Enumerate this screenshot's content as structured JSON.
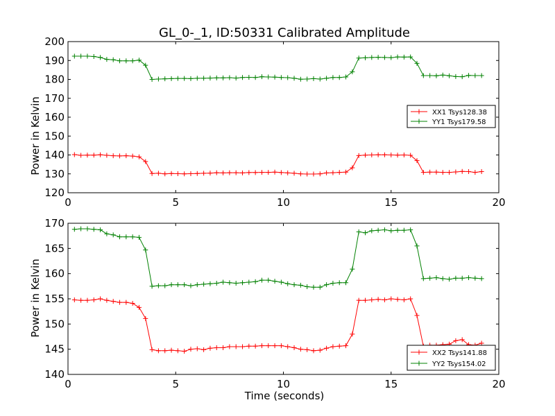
{
  "chart_data": [
    {
      "type": "line",
      "title": "GL_0-_1, ID:50331 Calibrated Amplitude",
      "xlabel": "",
      "ylabel": "Power in Kelvin",
      "xlim": [
        0,
        20
      ],
      "ylim": [
        120,
        200
      ],
      "xticks": [
        0,
        5,
        10,
        15,
        20
      ],
      "yticks": [
        120,
        130,
        140,
        150,
        160,
        170,
        180,
        190,
        200
      ],
      "grid": false,
      "legend_position": "right",
      "x": [
        0.3,
        0.6,
        0.9,
        1.2,
        1.5,
        1.8,
        2.1,
        2.4,
        2.7,
        3.0,
        3.3,
        3.6,
        3.9,
        4.2,
        4.5,
        4.8,
        5.1,
        5.4,
        5.7,
        6.0,
        6.3,
        6.6,
        6.9,
        7.2,
        7.5,
        7.8,
        8.1,
        8.4,
        8.7,
        9.0,
        9.3,
        9.6,
        9.9,
        10.2,
        10.5,
        10.8,
        11.1,
        11.4,
        11.7,
        12.0,
        12.3,
        12.6,
        12.9,
        13.2,
        13.5,
        13.8,
        14.1,
        14.4,
        14.7,
        15.0,
        15.3,
        15.6,
        15.9,
        16.2,
        16.5,
        16.8,
        17.1,
        17.4,
        17.7,
        18.0,
        18.3,
        18.6,
        18.9,
        19.2
      ],
      "series": [
        {
          "name": "XX1 Tsys128.38",
          "color": "#ff0000",
          "values": [
            140.2,
            139.8,
            139.9,
            139.9,
            140.1,
            139.8,
            139.6,
            139.5,
            139.6,
            139.4,
            139.0,
            136.5,
            130.2,
            130.3,
            130.0,
            130.2,
            130.1,
            130.0,
            130.1,
            130.2,
            130.3,
            130.4,
            130.6,
            130.5,
            130.6,
            130.6,
            130.5,
            130.7,
            130.7,
            130.8,
            130.8,
            130.9,
            130.7,
            130.5,
            130.3,
            130.0,
            129.9,
            129.9,
            130.0,
            130.5,
            130.6,
            130.8,
            130.9,
            133.2,
            139.7,
            139.9,
            140.0,
            140.1,
            140.1,
            140.0,
            139.9,
            140.0,
            139.8,
            137.0,
            130.8,
            130.9,
            130.9,
            130.8,
            130.8,
            131.0,
            131.3,
            131.2,
            130.8,
            131.2
          ]
        },
        {
          "name": "YY1 Tsys179.58",
          "color": "#008000",
          "values": [
            192.3,
            192.3,
            192.3,
            192.1,
            191.6,
            190.6,
            190.4,
            189.8,
            189.8,
            189.8,
            190.2,
            187.5,
            180.0,
            180.2,
            180.3,
            180.4,
            180.5,
            180.5,
            180.4,
            180.6,
            180.6,
            180.7,
            180.8,
            180.8,
            180.9,
            180.7,
            181.0,
            181.1,
            181.0,
            181.4,
            181.3,
            181.2,
            181.0,
            180.9,
            180.6,
            180.1,
            180.2,
            180.4,
            180.2,
            180.6,
            181.0,
            181.0,
            181.3,
            184.0,
            191.3,
            191.4,
            191.6,
            191.7,
            191.6,
            191.5,
            191.9,
            191.8,
            191.9,
            188.5,
            182.0,
            182.0,
            181.9,
            182.3,
            181.9,
            181.5,
            181.4,
            182.1,
            182.0,
            182.0
          ]
        }
      ]
    },
    {
      "type": "line",
      "title": "",
      "xlabel": "Time (seconds)",
      "ylabel": "Power in Kelvin",
      "xlim": [
        0,
        20
      ],
      "ylim": [
        140,
        170
      ],
      "xticks": [
        0,
        5,
        10,
        15,
        20
      ],
      "yticks": [
        140,
        145,
        150,
        155,
        160,
        165,
        170
      ],
      "grid": false,
      "legend_position": "bottom-right",
      "x": [
        0.3,
        0.6,
        0.9,
        1.2,
        1.5,
        1.8,
        2.1,
        2.4,
        2.7,
        3.0,
        3.3,
        3.6,
        3.9,
        4.2,
        4.5,
        4.8,
        5.1,
        5.4,
        5.7,
        6.0,
        6.3,
        6.6,
        6.9,
        7.2,
        7.5,
        7.8,
        8.1,
        8.4,
        8.7,
        9.0,
        9.3,
        9.6,
        9.9,
        10.2,
        10.5,
        10.8,
        11.1,
        11.4,
        11.7,
        12.0,
        12.3,
        12.6,
        12.9,
        13.2,
        13.5,
        13.8,
        14.1,
        14.4,
        14.7,
        15.0,
        15.3,
        15.6,
        15.9,
        16.2,
        16.5,
        16.8,
        17.1,
        17.4,
        17.7,
        18.0,
        18.3,
        18.6,
        18.9,
        19.2
      ],
      "series": [
        {
          "name": "XX2 Tsys141.88",
          "color": "#ff0000",
          "values": [
            154.8,
            154.7,
            154.7,
            154.8,
            155.0,
            154.7,
            154.5,
            154.3,
            154.3,
            154.1,
            153.3,
            151.1,
            144.9,
            144.7,
            144.7,
            144.8,
            144.7,
            144.6,
            145.0,
            145.1,
            144.9,
            145.2,
            145.3,
            145.3,
            145.5,
            145.5,
            145.5,
            145.6,
            145.6,
            145.7,
            145.7,
            145.7,
            145.7,
            145.5,
            145.3,
            145.0,
            144.9,
            144.7,
            144.8,
            145.2,
            145.5,
            145.6,
            145.7,
            148.0,
            154.7,
            154.7,
            154.8,
            154.9,
            154.8,
            155.0,
            154.9,
            154.8,
            155.0,
            151.7,
            145.6,
            145.8,
            145.8,
            145.9,
            146.0,
            146.7,
            146.9,
            145.9,
            145.8,
            146.2
          ]
        },
        {
          "name": "YY2 Tsys154.02",
          "color": "#008000",
          "values": [
            168.8,
            168.9,
            168.9,
            168.8,
            168.7,
            167.9,
            167.7,
            167.3,
            167.3,
            167.3,
            167.2,
            164.7,
            157.5,
            157.6,
            157.6,
            157.8,
            157.8,
            157.8,
            157.6,
            157.8,
            157.9,
            158.0,
            158.1,
            158.3,
            158.2,
            158.1,
            158.2,
            158.3,
            158.4,
            158.7,
            158.7,
            158.5,
            158.3,
            158.0,
            157.8,
            157.7,
            157.4,
            157.3,
            157.3,
            157.8,
            158.1,
            158.2,
            158.2,
            160.9,
            168.3,
            168.1,
            168.5,
            168.6,
            168.7,
            168.5,
            168.6,
            168.6,
            168.7,
            165.5,
            159.0,
            159.1,
            159.2,
            159.0,
            158.9,
            159.1,
            159.1,
            159.2,
            159.1,
            159.0
          ]
        }
      ]
    }
  ]
}
